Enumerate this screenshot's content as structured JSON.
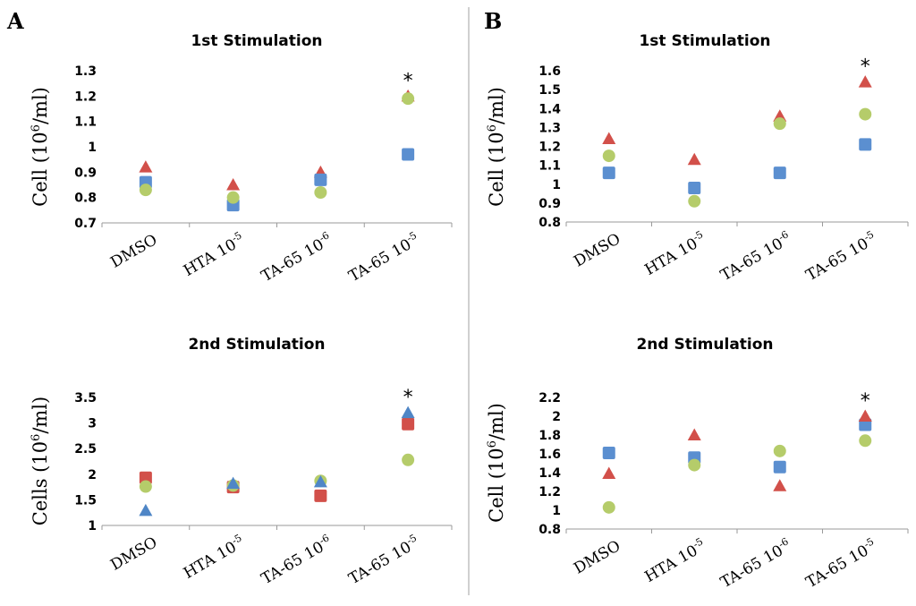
{
  "panels": [
    {
      "label": "A"
    },
    {
      "label": "B"
    }
  ],
  "colors": {
    "circle": "#b5cc6a",
    "square": "#5b8fd0",
    "triangle": "#d2504a",
    "triangle_blue": "#4f86c6",
    "square_red": "#d2504a"
  },
  "chart_data": [
    {
      "type": "scatter",
      "panel": "A",
      "title": "1st Stimulation",
      "ylabel": {
        "text": "Cell (10",
        "sup": "6",
        "after": "/ml)"
      },
      "ylim": [
        0.7,
        1.3
      ],
      "yticks": [
        0.7,
        0.8,
        0.9,
        1,
        1.1,
        1.2,
        1.3
      ],
      "categories": [
        {
          "base": "DMSO",
          "sup": ""
        },
        {
          "base": "HTA 10",
          "sup": "-5"
        },
        {
          "base": "TA-65 10",
          "sup": "-6"
        },
        {
          "base": "TA-65 10",
          "sup": "-5"
        }
      ],
      "series": [
        {
          "name": "triangle",
          "shape": "triangle",
          "color": "#d2504a",
          "values": [
            0.92,
            0.85,
            0.9,
            1.2
          ]
        },
        {
          "name": "square",
          "shape": "square",
          "color": "#5b8fd0",
          "values": [
            0.86,
            0.77,
            0.87,
            0.97
          ]
        },
        {
          "name": "circle",
          "shape": "circle",
          "color": "#b5cc6a",
          "values": [
            0.83,
            0.8,
            0.82,
            1.19
          ]
        }
      ],
      "annotation": {
        "text": "*",
        "category_index": 3
      }
    },
    {
      "type": "scatter",
      "panel": "B",
      "title": "1st Stimulation",
      "ylabel": {
        "text": "Cell (10",
        "sup": "6",
        "after": "/ml)"
      },
      "ylim": [
        0.8,
        1.6
      ],
      "yticks": [
        0.8,
        0.9,
        1,
        1.1,
        1.2,
        1.3,
        1.4,
        1.5,
        1.6
      ],
      "categories": [
        {
          "base": "DMSO",
          "sup": ""
        },
        {
          "base": "HTA 10",
          "sup": "-5"
        },
        {
          "base": "TA-65 10",
          "sup": "-6"
        },
        {
          "base": "TA-65 10",
          "sup": "-5"
        }
      ],
      "series": [
        {
          "name": "triangle",
          "shape": "triangle",
          "color": "#d2504a",
          "values": [
            1.24,
            1.13,
            1.36,
            1.54
          ]
        },
        {
          "name": "circle",
          "shape": "circle",
          "color": "#b5cc6a",
          "values": [
            1.15,
            0.91,
            1.32,
            1.37
          ]
        },
        {
          "name": "square",
          "shape": "square",
          "color": "#5b8fd0",
          "values": [
            1.06,
            0.98,
            1.06,
            1.21
          ]
        }
      ],
      "annotation": {
        "text": "*",
        "category_index": 3
      }
    },
    {
      "type": "scatter",
      "panel": "A",
      "title": "2nd Stimulation",
      "ylabel": {
        "text": "Cells (10",
        "sup": "6",
        "after": "/ml)"
      },
      "ylim": [
        1,
        3.5
      ],
      "yticks": [
        1,
        1.5,
        2,
        2.5,
        3,
        3.5
      ],
      "categories": [
        {
          "base": "DMSO",
          "sup": ""
        },
        {
          "base": "HTA 10",
          "sup": "-5"
        },
        {
          "base": "TA-65 10",
          "sup": "-6"
        },
        {
          "base": "TA-65 10",
          "sup": "-5"
        }
      ],
      "series": [
        {
          "name": "square",
          "shape": "square",
          "color": "#d2504a",
          "values": [
            1.93,
            1.75,
            1.58,
            2.98
          ]
        },
        {
          "name": "circle",
          "shape": "circle",
          "color": "#b5cc6a",
          "values": [
            1.76,
            1.78,
            1.87,
            2.28
          ]
        },
        {
          "name": "triangle",
          "shape": "triangle",
          "color": "#4f86c6",
          "values": [
            1.29,
            1.82,
            1.85,
            3.2
          ]
        }
      ],
      "annotation": {
        "text": "*",
        "category_index": 3
      }
    },
    {
      "type": "scatter",
      "panel": "B",
      "title": "2nd Stimulation",
      "ylabel": {
        "text": "Cell (10",
        "sup": "6",
        "after": "/ml)"
      },
      "ylim": [
        0.8,
        2.2
      ],
      "yticks": [
        0.8,
        1,
        1.2,
        1.4,
        1.6,
        1.8,
        2,
        2.2
      ],
      "categories": [
        {
          "base": "DMSO",
          "sup": ""
        },
        {
          "base": "HTA 10",
          "sup": "-5"
        },
        {
          "base": "TA-65 10",
          "sup": "-6"
        },
        {
          "base": "TA-65 10",
          "sup": "-5"
        }
      ],
      "series": [
        {
          "name": "square",
          "shape": "square",
          "color": "#5b8fd0",
          "values": [
            1.61,
            1.56,
            1.46,
            1.91
          ]
        },
        {
          "name": "triangle",
          "shape": "triangle",
          "color": "#d2504a",
          "values": [
            1.39,
            1.8,
            1.26,
            2.0
          ]
        },
        {
          "name": "circle",
          "shape": "circle",
          "color": "#b5cc6a",
          "values": [
            1.03,
            1.48,
            1.63,
            1.74
          ]
        }
      ],
      "annotation": {
        "text": "*",
        "category_index": 3
      }
    }
  ]
}
